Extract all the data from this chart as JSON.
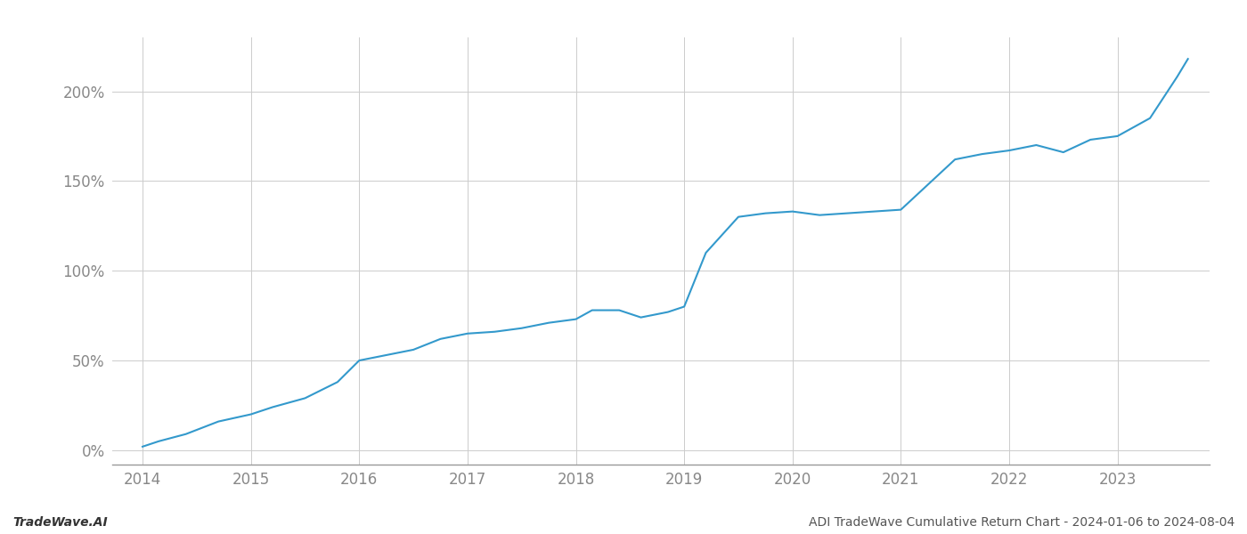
{
  "x_years": [
    2014.0,
    2014.15,
    2014.4,
    2014.7,
    2015.0,
    2015.2,
    2015.5,
    2015.8,
    2016.0,
    2016.25,
    2016.5,
    2016.75,
    2017.0,
    2017.25,
    2017.5,
    2017.75,
    2018.0,
    2018.15,
    2018.4,
    2018.6,
    2018.85,
    2019.0,
    2019.2,
    2019.5,
    2019.75,
    2020.0,
    2020.25,
    2020.5,
    2020.75,
    2021.0,
    2021.25,
    2021.5,
    2021.75,
    2022.0,
    2022.25,
    2022.5,
    2022.75,
    2023.0,
    2023.3,
    2023.55,
    2023.65
  ],
  "y_values": [
    2,
    5,
    9,
    16,
    20,
    24,
    29,
    38,
    50,
    53,
    56,
    62,
    65,
    66,
    68,
    71,
    73,
    78,
    78,
    74,
    77,
    80,
    110,
    130,
    132,
    133,
    131,
    132,
    133,
    134,
    148,
    162,
    165,
    167,
    170,
    166,
    173,
    175,
    185,
    208,
    218
  ],
  "line_color": "#3399cc",
  "line_width": 1.5,
  "bg_color": "#ffffff",
  "grid_color": "#cccccc",
  "tick_color": "#888888",
  "footer_left": "TradeWave.AI",
  "footer_right": "ADI TradeWave Cumulative Return Chart - 2024-01-06 to 2024-08-04",
  "yticks": [
    0,
    50,
    100,
    150,
    200
  ],
  "ytick_labels": [
    "0%",
    "50%",
    "100%",
    "150%",
    "200%"
  ],
  "xticks": [
    2014,
    2015,
    2016,
    2017,
    2018,
    2019,
    2020,
    2021,
    2022,
    2023
  ],
  "xlim": [
    2013.72,
    2023.85
  ],
  "ylim": [
    -8,
    230
  ]
}
